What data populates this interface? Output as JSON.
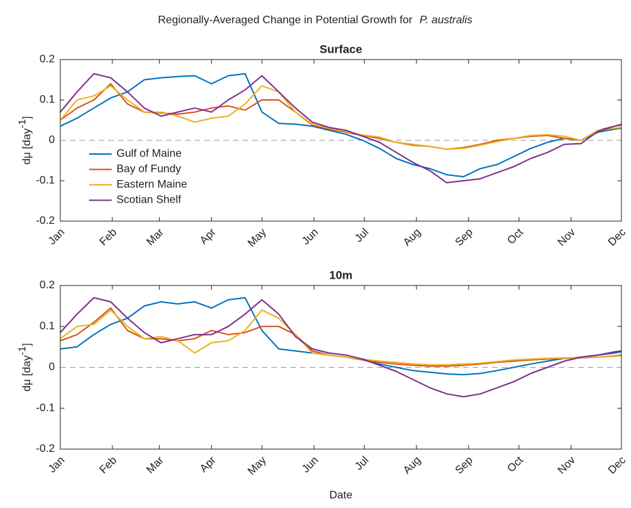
{
  "suptitle": {
    "text": "Regionally-Averaged Change in Potential Growth for",
    "species": "P. australis"
  },
  "chart_data": [
    {
      "type": "line",
      "title": "Surface",
      "ylabel": {
        "text": "dμ [day",
        "sup": "-1",
        "close": "]"
      },
      "x": [
        1,
        11,
        21,
        31,
        41,
        51,
        61,
        71,
        81,
        91,
        101,
        111,
        121,
        131,
        141,
        151,
        161,
        171,
        181,
        191,
        201,
        211,
        221,
        231,
        241,
        251,
        261,
        271,
        281,
        291,
        301,
        311,
        321,
        331,
        335
      ],
      "xlim": [
        1,
        335
      ],
      "xticks": [
        {
          "value": 1,
          "label": "Jan"
        },
        {
          "value": 32,
          "label": "Feb"
        },
        {
          "value": 60,
          "label": "Mar"
        },
        {
          "value": 91,
          "label": "Apr"
        },
        {
          "value": 121,
          "label": "May"
        },
        {
          "value": 152,
          "label": "Jun"
        },
        {
          "value": 182,
          "label": "Jul"
        },
        {
          "value": 213,
          "label": "Aug"
        },
        {
          "value": 244,
          "label": "Sep"
        },
        {
          "value": 274,
          "label": "Oct"
        },
        {
          "value": 305,
          "label": "Nov"
        },
        {
          "value": 335,
          "label": "Dec"
        }
      ],
      "ylim": [
        -0.2,
        0.2
      ],
      "yticks": [
        -0.2,
        -0.1,
        0,
        0.1,
        0.2
      ],
      "hline": 0,
      "legend": "lower left",
      "series": [
        {
          "name": "Gulf of Maine",
          "color": "#0072bd",
          "values": [
            0.035,
            0.055,
            0.08,
            0.105,
            0.12,
            0.15,
            0.155,
            0.158,
            0.16,
            0.14,
            0.16,
            0.165,
            0.07,
            0.042,
            0.04,
            0.035,
            0.025,
            0.015,
            0.0,
            -0.02,
            -0.045,
            -0.06,
            -0.07,
            -0.085,
            -0.09,
            -0.07,
            -0.06,
            -0.04,
            -0.02,
            -0.005,
            0.005,
            0.0,
            0.02,
            0.028,
            0.03
          ]
        },
        {
          "name": "Bay of Fundy",
          "color": "#d95319",
          "values": [
            0.05,
            0.08,
            0.1,
            0.14,
            0.09,
            0.07,
            0.068,
            0.065,
            0.07,
            0.08,
            0.085,
            0.075,
            0.1,
            0.1,
            0.07,
            0.038,
            0.028,
            0.02,
            0.012,
            0.005,
            -0.005,
            -0.012,
            -0.015,
            -0.022,
            -0.018,
            -0.01,
            0.0,
            0.005,
            0.01,
            0.012,
            0.005,
            0.0,
            0.025,
            0.035,
            0.038
          ]
        },
        {
          "name": "Eastern Maine",
          "color": "#edb120",
          "values": [
            0.05,
            0.1,
            0.11,
            0.135,
            0.1,
            0.07,
            0.07,
            0.06,
            0.045,
            0.055,
            0.06,
            0.09,
            0.135,
            0.12,
            0.07,
            0.04,
            0.03,
            0.022,
            0.013,
            0.008,
            -0.005,
            -0.01,
            -0.015,
            -0.022,
            -0.02,
            -0.012,
            -0.003,
            0.005,
            0.012,
            0.014,
            0.01,
            0.0,
            0.025,
            0.03,
            0.032
          ]
        },
        {
          "name": "Scotian Shelf",
          "color": "#7e2f8e",
          "values": [
            0.07,
            0.12,
            0.165,
            0.155,
            0.12,
            0.08,
            0.06,
            0.07,
            0.08,
            0.07,
            0.1,
            0.125,
            0.16,
            0.12,
            0.08,
            0.045,
            0.032,
            0.025,
            0.01,
            -0.005,
            -0.03,
            -0.055,
            -0.075,
            -0.105,
            -0.1,
            -0.095,
            -0.08,
            -0.065,
            -0.045,
            -0.03,
            -0.01,
            -0.008,
            0.022,
            0.035,
            0.04
          ]
        }
      ]
    },
    {
      "type": "line",
      "title": "10m",
      "xlabel": "Date",
      "ylabel": {
        "text": "dμ [day",
        "sup": "-1",
        "close": "]"
      },
      "x": [
        1,
        11,
        21,
        31,
        41,
        51,
        61,
        71,
        81,
        91,
        101,
        111,
        121,
        131,
        141,
        151,
        161,
        171,
        181,
        191,
        201,
        211,
        221,
        231,
        241,
        251,
        261,
        271,
        281,
        291,
        301,
        311,
        321,
        331,
        335
      ],
      "xlim": [
        1,
        335
      ],
      "xticks": [
        {
          "value": 1,
          "label": "Jan"
        },
        {
          "value": 32,
          "label": "Feb"
        },
        {
          "value": 60,
          "label": "Mar"
        },
        {
          "value": 91,
          "label": "Apr"
        },
        {
          "value": 121,
          "label": "May"
        },
        {
          "value": 152,
          "label": "Jun"
        },
        {
          "value": 182,
          "label": "Jul"
        },
        {
          "value": 213,
          "label": "Aug"
        },
        {
          "value": 244,
          "label": "Sep"
        },
        {
          "value": 274,
          "label": "Oct"
        },
        {
          "value": 305,
          "label": "Nov"
        },
        {
          "value": 335,
          "label": "Dec"
        }
      ],
      "ylim": [
        -0.2,
        0.2
      ],
      "yticks": [
        -0.2,
        -0.1,
        0,
        0.1,
        0.2
      ],
      "hline": 0,
      "series": [
        {
          "color": "#0072bd",
          "values": [
            0.045,
            0.05,
            0.08,
            0.105,
            0.12,
            0.15,
            0.16,
            0.155,
            0.16,
            0.145,
            0.165,
            0.17,
            0.09,
            0.045,
            0.04,
            0.035,
            0.03,
            0.025,
            0.018,
            0.008,
            0.0,
            -0.008,
            -0.012,
            -0.016,
            -0.018,
            -0.015,
            -0.008,
            0.0,
            0.008,
            0.015,
            0.022,
            0.025,
            0.03,
            0.035,
            0.038
          ]
        },
        {
          "color": "#d95319",
          "values": [
            0.065,
            0.08,
            0.11,
            0.145,
            0.09,
            0.07,
            0.07,
            0.065,
            0.07,
            0.09,
            0.08,
            0.085,
            0.1,
            0.1,
            0.08,
            0.04,
            0.03,
            0.025,
            0.018,
            0.012,
            0.008,
            0.005,
            0.003,
            0.003,
            0.005,
            0.008,
            0.012,
            0.015,
            0.018,
            0.02,
            0.022,
            0.023,
            0.025,
            0.028,
            0.03
          ]
        },
        {
          "color": "#edb120",
          "values": [
            0.07,
            0.1,
            0.105,
            0.14,
            0.1,
            0.07,
            0.075,
            0.065,
            0.035,
            0.06,
            0.065,
            0.09,
            0.14,
            0.12,
            0.08,
            0.035,
            0.03,
            0.025,
            0.02,
            0.015,
            0.012,
            0.008,
            0.006,
            0.006,
            0.008,
            0.01,
            0.014,
            0.018,
            0.02,
            0.022,
            0.023,
            0.024,
            0.025,
            0.027,
            0.028
          ]
        },
        {
          "color": "#7e2f8e",
          "values": [
            0.085,
            0.13,
            0.17,
            0.16,
            0.12,
            0.085,
            0.06,
            0.07,
            0.08,
            0.08,
            0.1,
            0.13,
            0.165,
            0.13,
            0.075,
            0.045,
            0.035,
            0.03,
            0.02,
            0.005,
            -0.01,
            -0.03,
            -0.05,
            -0.065,
            -0.072,
            -0.065,
            -0.05,
            -0.035,
            -0.015,
            0.0,
            0.015,
            0.025,
            0.03,
            0.038,
            0.04
          ]
        }
      ]
    }
  ]
}
